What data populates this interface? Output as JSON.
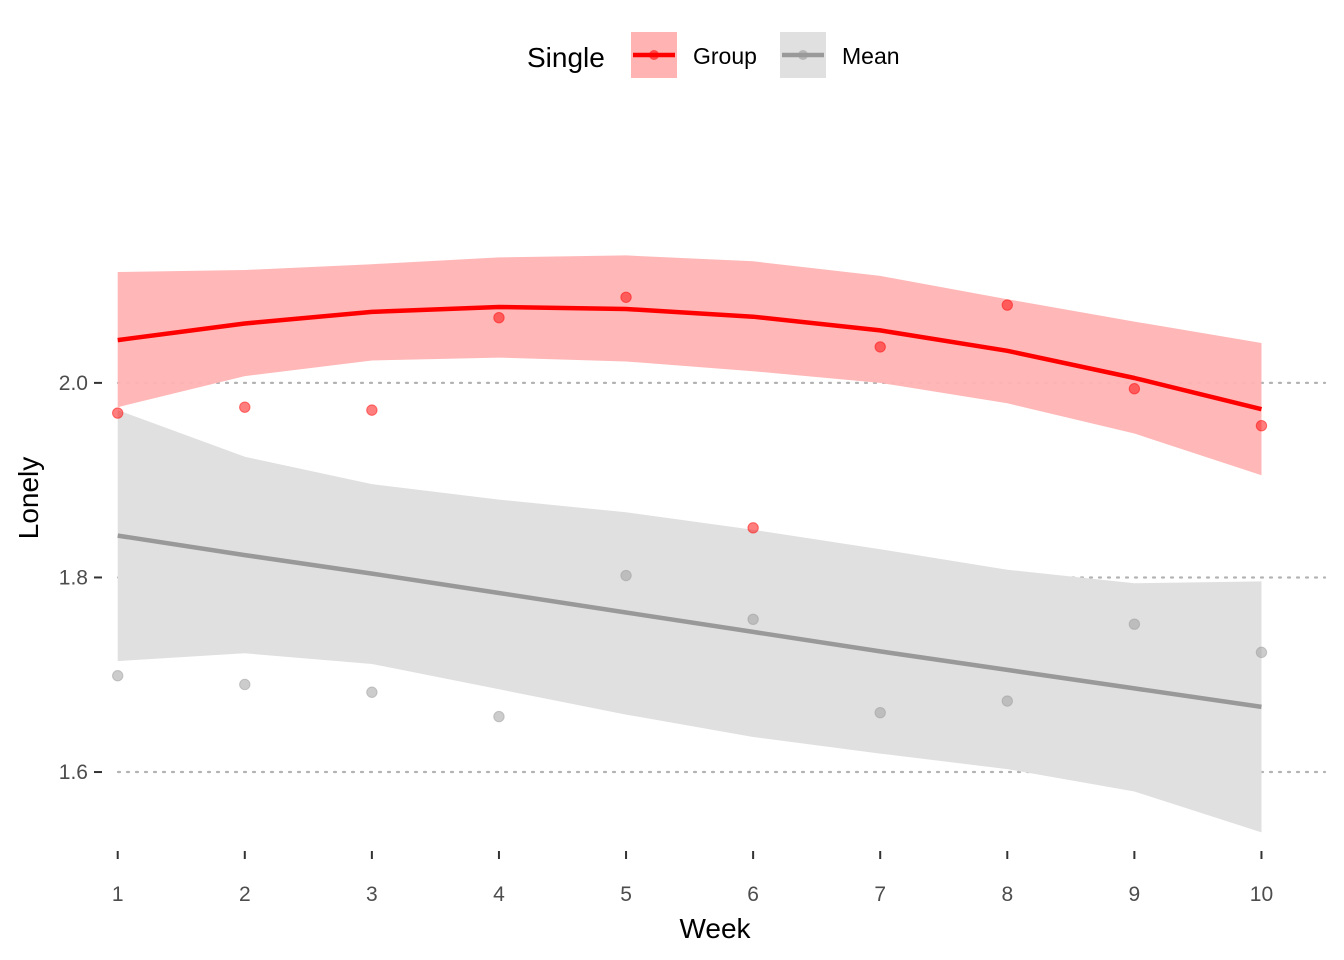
{
  "chart_data": {
    "type": "line",
    "xlabel": "Week",
    "ylabel": "Lonely",
    "legend": {
      "title": "Single",
      "placement": "top"
    },
    "x": [
      1,
      2,
      3,
      4,
      5,
      6,
      7,
      8,
      9,
      10
    ],
    "x_ticks": [
      "1",
      "2",
      "3",
      "4",
      "5",
      "6",
      "7",
      "8",
      "9",
      "10"
    ],
    "y_ticks": [
      "1.6",
      "1.8",
      "2.0"
    ],
    "y_tick_values": [
      1.6,
      1.8,
      2.0
    ],
    "xlim": [
      0.9,
      10.5
    ],
    "ylim": [
      1.525,
      2.262
    ],
    "grid": "horizontal dotted at y ticks",
    "series": [
      {
        "name": "Group",
        "color": "#ff0000",
        "band_color": "#ffb3b3",
        "points": [
          1.969,
          1.975,
          1.972,
          2.067,
          2.088,
          1.851,
          2.037,
          2.08,
          1.994,
          1.956
        ],
        "fit": [
          2.044,
          2.061,
          2.073,
          2.078,
          2.076,
          2.068,
          2.054,
          2.033,
          2.005,
          1.973
        ],
        "band_upper": [
          2.114,
          2.116,
          2.122,
          2.129,
          2.131,
          2.125,
          2.11,
          2.086,
          2.063,
          2.041
        ],
        "band_lower": [
          1.975,
          2.007,
          2.023,
          2.026,
          2.022,
          2.012,
          2.0,
          1.979,
          1.948,
          1.905
        ]
      },
      {
        "name": "Mean",
        "color": "#999999",
        "band_color": "#e0e0e0",
        "points": [
          1.699,
          1.69,
          1.682,
          1.657,
          1.802,
          1.757,
          1.661,
          1.673,
          1.752,
          1.723
        ],
        "fit": [
          1.843,
          1.823,
          1.804,
          1.784,
          1.764,
          1.744,
          1.724,
          1.705,
          1.686,
          1.667
        ],
        "band_upper": [
          1.972,
          1.924,
          1.896,
          1.88,
          1.867,
          1.849,
          1.829,
          1.808,
          1.794,
          1.796
        ],
        "band_lower": [
          1.714,
          1.722,
          1.711,
          1.685,
          1.659,
          1.636,
          1.619,
          1.603,
          1.58,
          1.538
        ]
      }
    ]
  }
}
